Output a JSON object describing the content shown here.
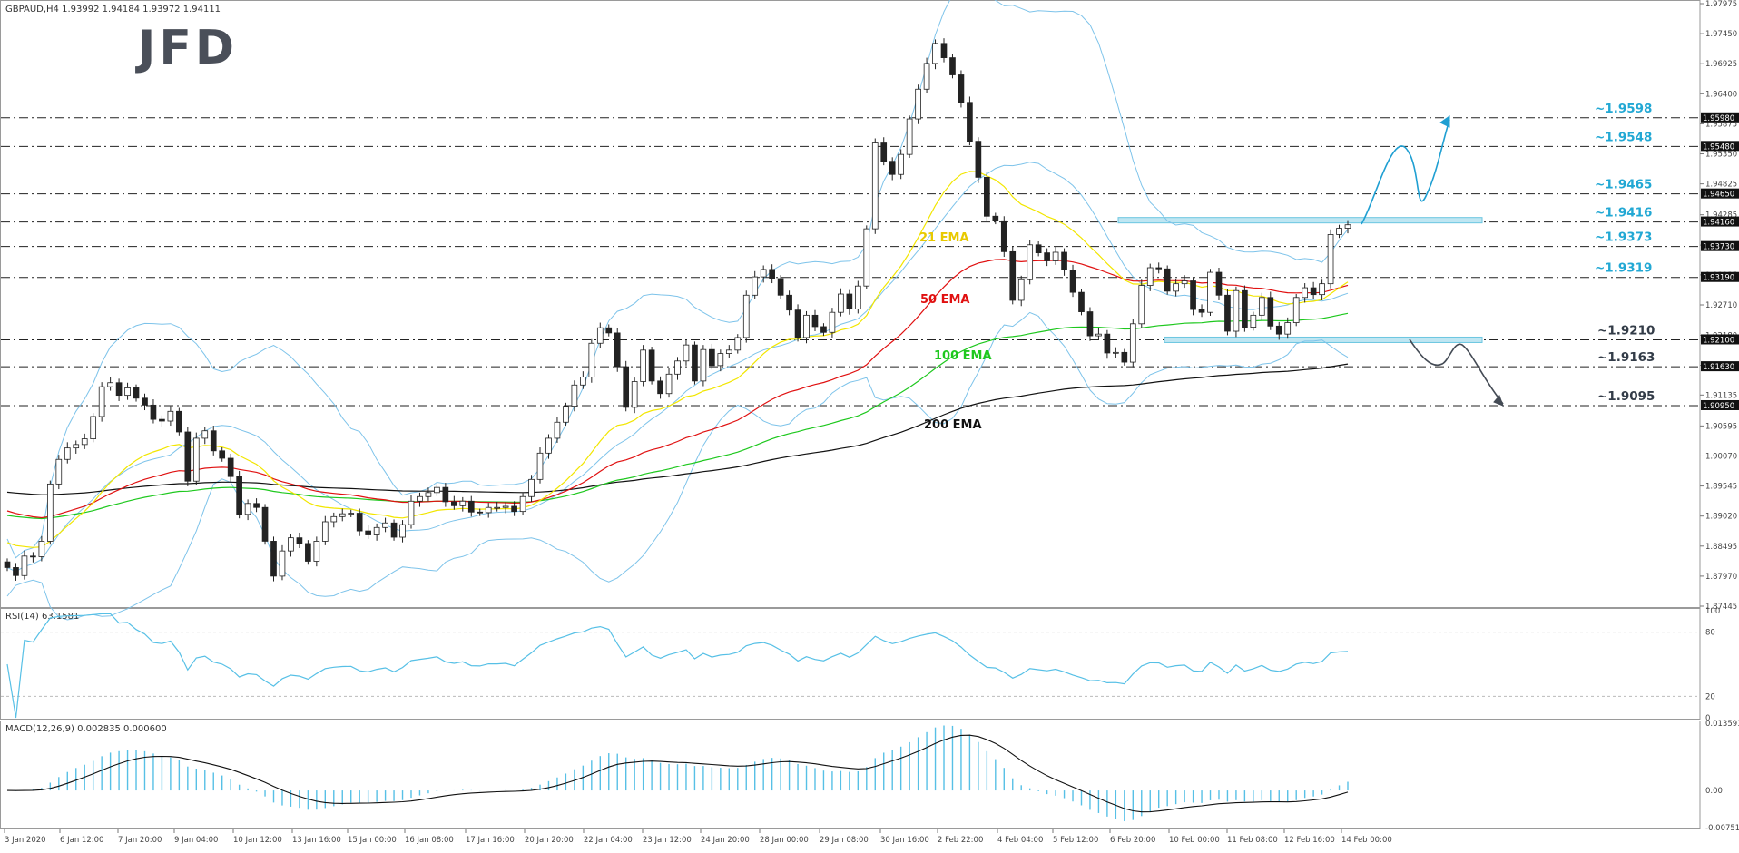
{
  "header": {
    "symbol": "GBPAUD,H4",
    "ohlc": "1.93992 1.94184 1.93972 1.94111"
  },
  "logo": "JFD",
  "rsi_header": "RSI(14) 63.1581",
  "macd_header": "MACD(12,26,9) 0.002835 0.000600",
  "colors": {
    "candle_up": "#ffffff",
    "candle_down": "#222222",
    "ema21": "#f2e600",
    "ema50": "#e01010",
    "ema100": "#1ec81e",
    "ema200": "#111111",
    "bollinger": "#7dc3ea",
    "level_label": "#22a8d4",
    "rsi": "#57c0e6",
    "macd_hist": "#57c0e6",
    "macd_signal": "#111111",
    "arrow_up": "#1f9fd2",
    "arrow_down": "#444b55"
  },
  "price_axis_ticks": [
    "1.97975",
    "1.97450",
    "1.96925",
    "1.96400",
    "1.95875",
    "1.95350",
    "1.94825",
    "1.94285",
    "1.93755",
    "1.93235",
    "1.92710",
    "1.92180",
    "1.91655",
    "1.91135",
    "1.90595",
    "1.90070",
    "1.89545",
    "1.89020",
    "1.88495",
    "1.87970",
    "1.87445"
  ],
  "price_level_badges": [
    "1.95980",
    "1.95480",
    "1.94650",
    "1.94160",
    "1.93730",
    "1.93190",
    "1.92100",
    "1.91630",
    "1.90950"
  ],
  "level_labels": [
    "~1.9598",
    "~1.9548",
    "~1.9465",
    "~1.9416",
    "~1.9373",
    "~1.9319",
    "~1.9210",
    "~1.9163",
    "~1.9095"
  ],
  "ema_labels": [
    "21 EMA",
    "50 EMA",
    "100 EMA",
    "200 EMA"
  ],
  "rsi_axis": [
    "100",
    "80",
    "20",
    "0"
  ],
  "macd_axis": [
    "0.013591",
    "0.00",
    "-0.007511"
  ],
  "time_labels": [
    "3 Jan 2020",
    "6 Jan 12:00",
    "7 Jan 20:00",
    "9 Jan 04:00",
    "10 Jan 12:00",
    "13 Jan 16:00",
    "15 Jan 00:00",
    "16 Jan 08:00",
    "17 Jan 16:00",
    "20 Jan 20:00",
    "22 Jan 04:00",
    "23 Jan 12:00",
    "24 Jan 20:00",
    "28 Jan 00:00",
    "29 Jan 08:00",
    "30 Jan 16:00",
    "2 Feb 22:00",
    "4 Feb 04:00",
    "5 Feb 12:00",
    "6 Feb 20:00",
    "10 Feb 00:00",
    "11 Feb 08:00",
    "12 Feb 16:00",
    "14 Feb 00:00"
  ],
  "chart_data": {
    "type": "candlestick",
    "title": "GBPAUD,H4",
    "ylim": [
      1.87445,
      1.97975
    ],
    "close": [
      1.8812,
      1.8798,
      1.8832,
      1.8831,
      1.8858,
      1.8958,
      1.9001,
      1.9021,
      1.9027,
      1.9037,
      1.9076,
      1.9128,
      1.9135,
      1.9113,
      1.9126,
      1.9108,
      1.9096,
      1.9071,
      1.9068,
      1.9085,
      1.9049,
      1.8963,
      1.9038,
      1.9051,
      1.9016,
      1.9003,
      1.8971,
      1.8905,
      1.8924,
      1.8917,
      1.8858,
      1.8797,
      1.8841,
      1.8864,
      1.8854,
      1.8823,
      1.8858,
      1.8892,
      1.8901,
      1.8906,
      1.8907,
      1.8876,
      1.8869,
      1.8882,
      1.889,
      1.8865,
      1.8887,
      1.8928,
      1.8936,
      1.8943,
      1.8952,
      1.8927,
      1.892,
      1.8928,
      1.8909,
      1.8908,
      1.8917,
      1.8917,
      1.8919,
      1.891,
      1.8936,
      1.8966,
      1.9012,
      1.9038,
      1.9066,
      1.9094,
      1.9131,
      1.9145,
      1.9204,
      1.9231,
      1.9222,
      1.9163,
      1.9092,
      1.9137,
      1.9192,
      1.9138,
      1.9116,
      1.915,
      1.9173,
      1.9201,
      1.9138,
      1.9193,
      1.9165,
      1.9186,
      1.9192,
      1.9214,
      1.9288,
      1.932,
      1.9333,
      1.9317,
      1.9288,
      1.9262,
      1.9214,
      1.9253,
      1.9233,
      1.9223,
      1.9258,
      1.929,
      1.9264,
      1.9304,
      1.9404,
      1.9554,
      1.9522,
      1.9499,
      1.9534,
      1.9596,
      1.9648,
      1.9693,
      1.9728,
      1.9703,
      1.9673,
      1.9625,
      1.9557,
      1.9494,
      1.9426,
      1.9418,
      1.9364,
      1.9279,
      1.9315,
      1.9376,
      1.9362,
      1.9348,
      1.9363,
      1.9332,
      1.9293,
      1.9259,
      1.9217,
      1.922,
      1.9187,
      1.9188,
      1.9171,
      1.9238,
      1.9305,
      1.9336,
      1.9334,
      1.9295,
      1.9308,
      1.9313,
      1.9263,
      1.9258,
      1.9328,
      1.9288,
      1.9225,
      1.9296,
      1.9232,
      1.9253,
      1.9284,
      1.9234,
      1.922,
      1.924,
      1.9284,
      1.9301,
      1.9289,
      1.9308,
      1.9394,
      1.9405,
      1.9411
    ]
  }
}
